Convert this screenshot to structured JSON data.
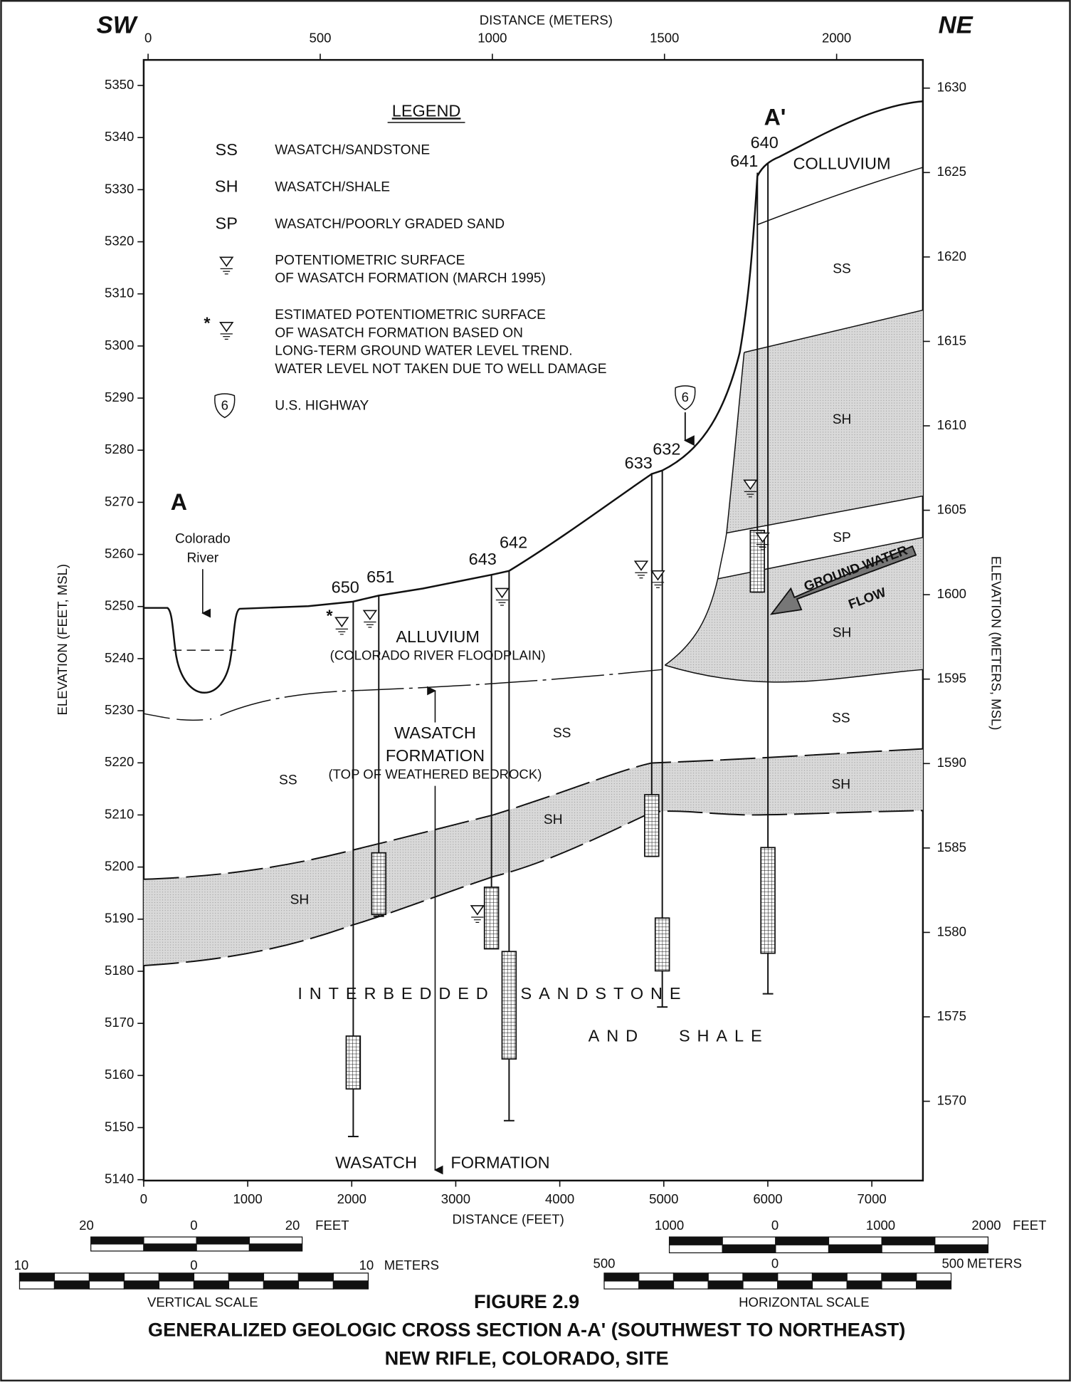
{
  "header": {
    "left": "SW",
    "right": "NE",
    "top_axis_title": "DISTANCE (METERS)"
  },
  "axes": {
    "top_ticks": [
      0,
      500,
      1000,
      1500,
      2000
    ],
    "bottom_ticks": [
      0,
      1000,
      2000,
      3000,
      4000,
      5000,
      6000,
      7000
    ],
    "bottom_title": "DISTANCE (FEET)",
    "left_ticks": [
      5140,
      5150,
      5160,
      5170,
      5180,
      5190,
      5200,
      5210,
      5220,
      5230,
      5240,
      5250,
      5260,
      5270,
      5280,
      5290,
      5300,
      5310,
      5320,
      5330,
      5340,
      5350
    ],
    "left_title": "ELEVATION (FEET, MSL)",
    "right_ticks": [
      1570,
      1575,
      1580,
      1585,
      1590,
      1595,
      1600,
      1605,
      1610,
      1615,
      1620,
      1625,
      1630
    ],
    "right_title": "ELEVATION (METERS, MSL)"
  },
  "legend": {
    "title": "LEGEND",
    "items": [
      {
        "symbol": "SS",
        "lines": [
          "WASATCH/SANDSTONE"
        ]
      },
      {
        "symbol": "SH",
        "lines": [
          "WASATCH/SHALE"
        ]
      },
      {
        "symbol": "SP",
        "lines": [
          "WASATCH/POORLY GRADED SAND"
        ]
      },
      {
        "lines": [
          "POTENTIOMETRIC SURFACE",
          "OF WASATCH FORMATION (MARCH 1995)"
        ]
      },
      {
        "symbol": "*",
        "lines": [
          "ESTIMATED POTENTIOMETRIC SURFACE",
          "OF WASATCH FORMATION BASED ON",
          "LONG-TERM GROUND WATER LEVEL TREND.",
          "WATER LEVEL NOT TAKEN DUE TO WELL DAMAGE"
        ]
      },
      {
        "symbol": "6",
        "lines": [
          "U.S. HIGHWAY"
        ]
      }
    ]
  },
  "section": {
    "ends": [
      "A",
      "A'"
    ],
    "river": [
      "Colorado",
      "River"
    ],
    "highway": "6",
    "estimated_mark": "*",
    "wells": [
      "650",
      "651",
      "643",
      "642",
      "633",
      "632",
      "641",
      "640"
    ],
    "formations": [
      "COLLUVIUM",
      "SS",
      "SH",
      "SP",
      "SH",
      "SS",
      "SH",
      "SS",
      "SS",
      "SH",
      "SH"
    ],
    "alluvium": [
      "ALLUVIUM",
      "(COLORADO RIVER FLOODPLAIN)"
    ],
    "wasatch_top": [
      "WASATCH",
      "FORMATION",
      "(TOP OF WEATHERED BEDROCK)"
    ],
    "interbedded": [
      "INTERBEDDED",
      "SANDSTONE",
      "AND",
      "SHALE"
    ],
    "wasatch_bottom": [
      "WASATCH",
      "FORMATION"
    ],
    "flow": [
      "GROUND WATER",
      "FLOW"
    ]
  },
  "scales": {
    "vertical": {
      "feet": [
        "20",
        "0",
        "20",
        "FEET"
      ],
      "meters": [
        "10",
        "0",
        "10",
        "METERS"
      ],
      "title": "VERTICAL SCALE"
    },
    "horizontal": {
      "feet": [
        "1000",
        "0",
        "1000",
        "2000",
        "FEET"
      ],
      "meters": [
        "500",
        "0",
        "500",
        "METERS"
      ],
      "title": "HORIZONTAL SCALE"
    }
  },
  "caption": {
    "figure": "FIGURE 2.9",
    "lines": [
      "GENERALIZED GEOLOGIC CROSS SECTION A-A' (SOUTHWEST TO NORTHEAST)",
      "NEW RIFLE, COLORADO, SITE"
    ]
  }
}
